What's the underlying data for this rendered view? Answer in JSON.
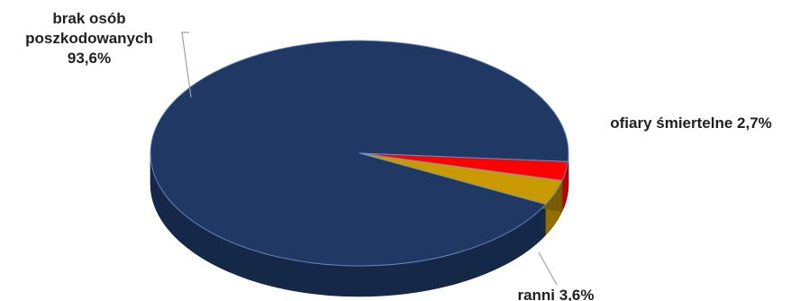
{
  "chart_data": {
    "type": "pie",
    "title": "",
    "three_d": true,
    "legend": "none",
    "slices": [
      {
        "label_lines": [
          "brak osób",
          "poszkodowanych",
          "93,6%"
        ],
        "category": "brak osób poszkodowanych",
        "value": 93.6,
        "color": "#1f3864"
      },
      {
        "label_lines": [
          "ofiary śmiertelne 2,7%"
        ],
        "category": "ofiary śmiertelne",
        "value": 2.7,
        "color": "#ff0000"
      },
      {
        "label_lines": [
          "ranni 3,6%"
        ],
        "category": "ranni",
        "value": 3.6,
        "color": "#c99a00"
      }
    ]
  }
}
